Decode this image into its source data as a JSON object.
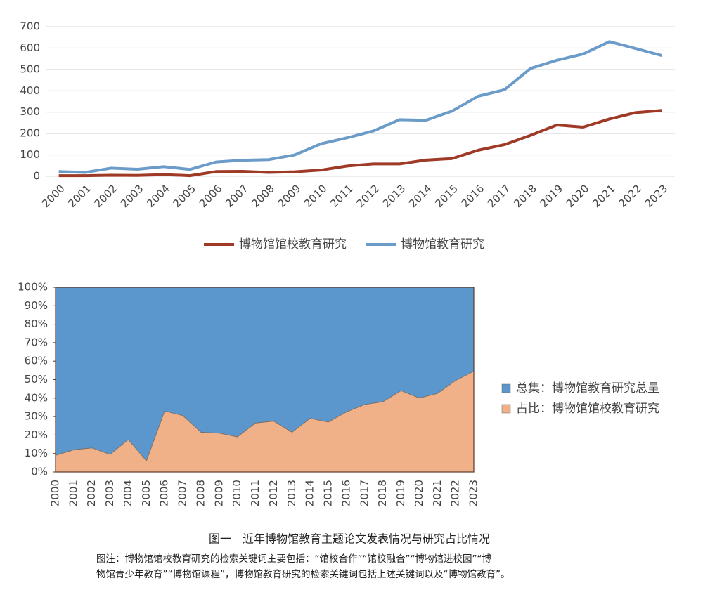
{
  "chart_data": [
    {
      "type": "line",
      "categories": [
        "2000",
        "2001",
        "2002",
        "2003",
        "2004",
        "2005",
        "2006",
        "2007",
        "2008",
        "2009",
        "2010",
        "2011",
        "2012",
        "2013",
        "2014",
        "2015",
        "2016",
        "2017",
        "2018",
        "2019",
        "2020",
        "2021",
        "2022",
        "2023"
      ],
      "series": [
        {
          "name": "博物馆馆校教育研究",
          "color": "#9e3a26",
          "values": [
            3,
            3,
            5,
            4,
            8,
            3,
            22,
            23,
            18,
            21,
            29,
            48,
            58,
            58,
            76,
            83,
            122,
            148,
            192,
            240,
            230,
            268,
            298,
            308
          ]
        },
        {
          "name": "博物馆教育研究",
          "color": "#6b9bc8",
          "values": [
            22,
            18,
            38,
            33,
            45,
            32,
            67,
            75,
            78,
            100,
            152,
            180,
            212,
            265,
            262,
            305,
            375,
            405,
            505,
            543,
            572,
            630,
            598,
            565
          ]
        }
      ],
      "ylim": [
        0,
        700
      ],
      "yticks": [
        0,
        100,
        200,
        300,
        400,
        500,
        600,
        700
      ],
      "grid": true,
      "legend": "bottom"
    },
    {
      "type": "area",
      "categories": [
        "2000",
        "2001",
        "2002",
        "2003",
        "2004",
        "2005",
        "2006",
        "2007",
        "2008",
        "2009",
        "2010",
        "2011",
        "2012",
        "2013",
        "2014",
        "2015",
        "2016",
        "2017",
        "2018",
        "2019",
        "2020",
        "2021",
        "2022",
        "2023"
      ],
      "series": [
        {
          "name": "总集：博物馆教育研究总量",
          "color": "#5b97cc",
          "values": [
            100,
            100,
            100,
            100,
            100,
            100,
            100,
            100,
            100,
            100,
            100,
            100,
            100,
            100,
            100,
            100,
            100,
            100,
            100,
            100,
            100,
            100,
            100,
            100
          ]
        },
        {
          "name": "占比：博物馆馆校教育研究",
          "color": "#f0b088",
          "values": [
            9,
            12,
            13,
            9.5,
            17.5,
            6,
            33,
            30.5,
            21.5,
            21,
            19,
            26.5,
            27.5,
            21.5,
            29,
            27,
            32.5,
            36.5,
            38,
            44,
            40,
            42.5,
            49.5,
            54.5
          ]
        }
      ],
      "ylim": [
        0,
        100
      ],
      "yticks": [
        {
          "value": 0,
          "label": "0%"
        },
        {
          "value": 10,
          "label": "10%"
        },
        {
          "value": 20,
          "label": "20%"
        },
        {
          "value": 30,
          "label": "30%"
        },
        {
          "value": 40,
          "label": "40%"
        },
        {
          "value": 50,
          "label": "50%"
        },
        {
          "value": 60,
          "label": "60%"
        },
        {
          "value": 70,
          "label": "70%"
        },
        {
          "value": 80,
          "label": "80%"
        },
        {
          "value": 90,
          "label": "90%"
        },
        {
          "value": 100,
          "label": "100%"
        }
      ],
      "legend": "right"
    }
  ],
  "caption": "图一　近年博物馆教育主题论文发表情况与研究占比情况",
  "note": [
    "图注：博物馆馆校教育研究的检索关键词主要包括：“馆校合作”“馆校融合”“博物馆进校园”“博",
    "物馆青少年教育”“博物馆课程”，博物馆教育研究的检索关键词包括上述关键词以及“博物馆教育”。"
  ]
}
